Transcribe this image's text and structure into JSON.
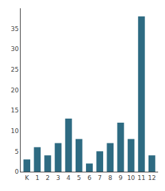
{
  "chart_data": {
    "type": "bar",
    "categories": [
      "K",
      "1",
      "2",
      "3",
      "4",
      "5",
      "6",
      "7",
      "8",
      "9",
      "10",
      "11",
      "12"
    ],
    "values": [
      3,
      6,
      4,
      7,
      13,
      8,
      2,
      5,
      7,
      12,
      8,
      38,
      4
    ],
    "color": "#2e6b82",
    "ylim": [
      0,
      40
    ],
    "yticks": [
      0,
      5,
      10,
      15,
      20,
      25,
      30,
      35
    ],
    "grid": false
  }
}
